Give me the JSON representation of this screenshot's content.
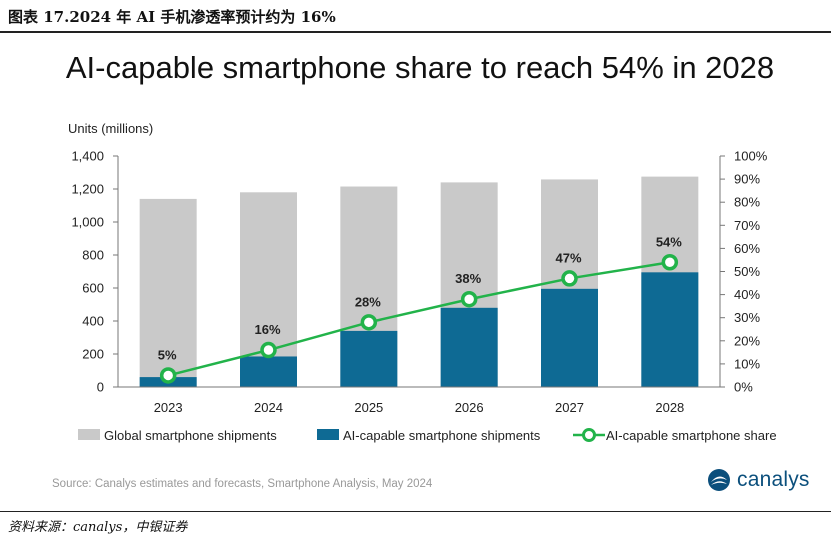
{
  "caption": "图表 17.2024 年 AI 手机渗透率预计约为 16%",
  "source_note": "资料来源：canalys，中银证券",
  "brand": {
    "name": "canalys",
    "color": "#0b4f7c"
  },
  "chart_data": {
    "type": "bar",
    "title": "AI-capable smartphone share to reach 54% in 2028",
    "ylabel": "Units (millions)",
    "categories": [
      "2023",
      "2024",
      "2025",
      "2026",
      "2027",
      "2028"
    ],
    "series": [
      {
        "name": "Global smartphone shipments",
        "kind": "bar",
        "color": "#c9c9c9",
        "values": [
          1140,
          1180,
          1215,
          1240,
          1258,
          1275
        ]
      },
      {
        "name": "AI-capable smartphone shipments",
        "kind": "bar",
        "color": "#0e6a94",
        "values": [
          60,
          185,
          340,
          480,
          595,
          695
        ]
      },
      {
        "name": "AI-capable smartphone share",
        "kind": "line",
        "axis": "right",
        "color": "#22b34a",
        "values": [
          5,
          16,
          28,
          38,
          47,
          54
        ],
        "labels": [
          "5%",
          "16%",
          "28%",
          "38%",
          "47%",
          "54%"
        ]
      }
    ],
    "ylim": [
      0,
      1400
    ],
    "yticks": [
      "0",
      "200",
      "400",
      "600",
      "800",
      "1,000",
      "1,200",
      "1,400"
    ],
    "y2lim": [
      0,
      100
    ],
    "y2ticks": [
      "0%",
      "10%",
      "20%",
      "30%",
      "40%",
      "50%",
      "60%",
      "70%",
      "80%",
      "90%",
      "100%"
    ],
    "legend_position": "bottom",
    "source": "Source: Canalys estimates and forecasts, Smartphone Analysis, May 2024"
  }
}
